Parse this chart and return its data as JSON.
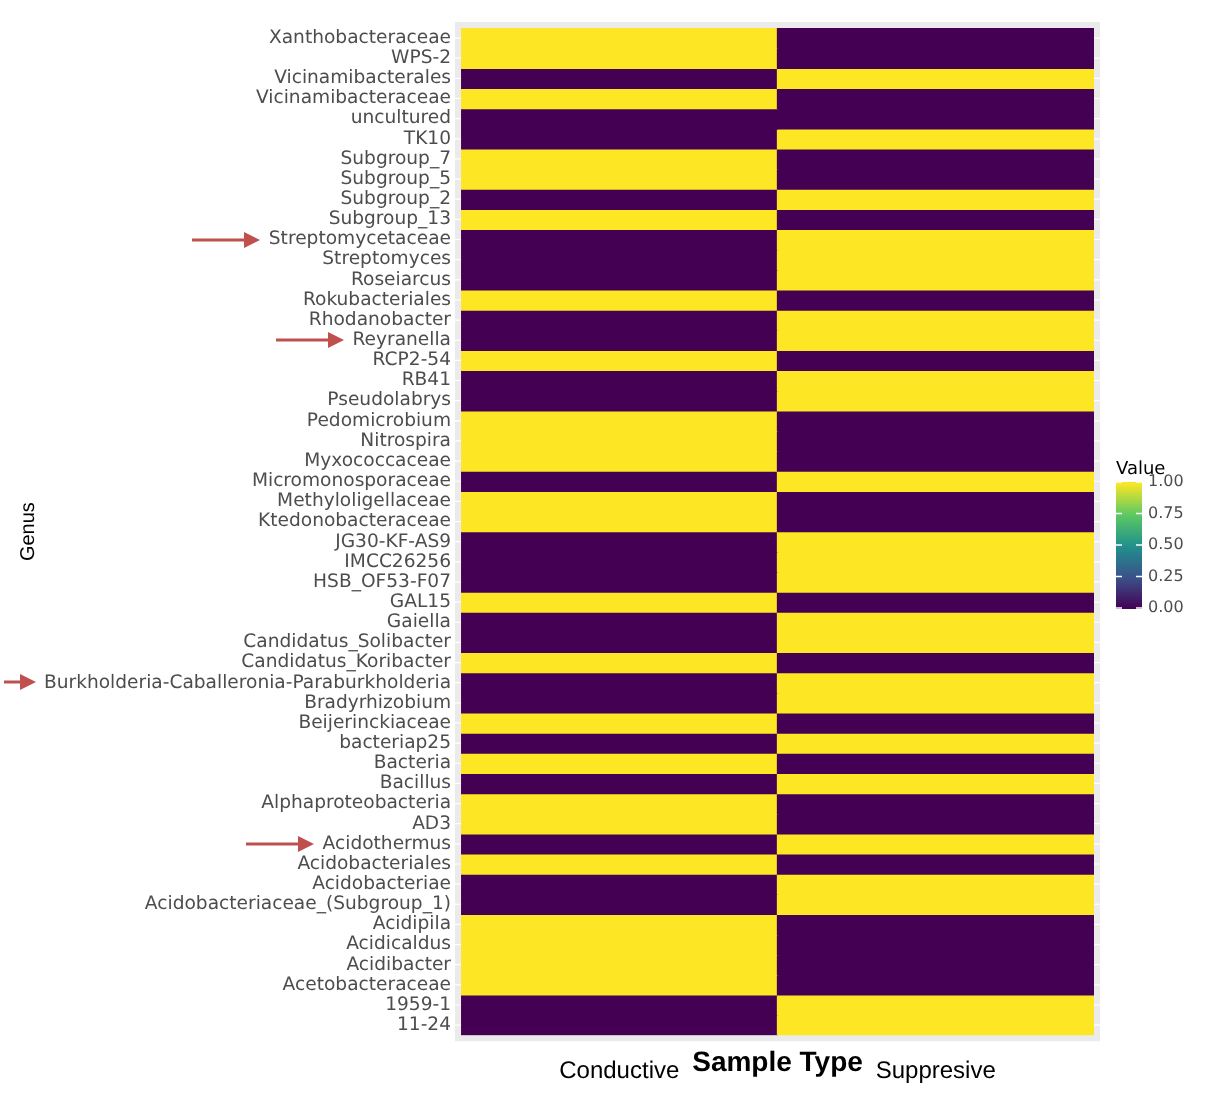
{
  "chart_data": {
    "type": "heatmap",
    "xlabel": "Sample Type",
    "ylabel": "Genus",
    "legend_title": "Value",
    "categories": [
      "Conductive",
      "Suppresive"
    ],
    "y_categories": [
      "Xanthobacteraceae",
      "WPS-2",
      "Vicinamibacterales",
      "Vicinamibacteraceae",
      "uncultured",
      "TK10",
      "Subgroup_7",
      "Subgroup_5",
      "Subgroup_2",
      "Subgroup_13",
      "Streptomycetaceae",
      "Streptomyces",
      "Roseiarcus",
      "Rokubacteriales",
      "Rhodanobacter",
      "Reyranella",
      "RCP2-54",
      "RB41",
      "Pseudolabrys",
      "Pedomicrobium",
      "Nitrospira",
      "Myxococcaceae",
      "Micromonosporaceae",
      "Methyloligellaceae",
      "Ktedonobacteraceae",
      "JG30-KF-AS9",
      "IMCC26256",
      "HSB_OF53-F07",
      "GAL15",
      "Gaiella",
      "Candidatus_Solibacter",
      "Candidatus_Koribacter",
      "Burkholderia-Caballeronia-Paraburkholderia",
      "Bradyrhizobium",
      "Beijerinckiaceae",
      "bacteriap25",
      "Bacteria",
      "Bacillus",
      "Alphaproteobacteria",
      "AD3",
      "Acidothermus",
      "Acidobacteriales",
      "Acidobacteriae",
      "Acidobacteriaceae_(Subgroup_1)",
      "Acidipila",
      "Acidicaldus",
      "Acidibacter",
      "Acetobacteraceae",
      "1959-1",
      "11-24"
    ],
    "cells": [
      [
        1,
        0
      ],
      [
        1,
        0
      ],
      [
        0,
        1
      ],
      [
        1,
        0
      ],
      [
        0,
        0
      ],
      [
        0,
        1
      ],
      [
        1,
        0
      ],
      [
        1,
        0
      ],
      [
        0,
        1
      ],
      [
        1,
        0
      ],
      [
        0,
        1
      ],
      [
        0,
        1
      ],
      [
        0,
        1
      ],
      [
        1,
        0
      ],
      [
        0,
        1
      ],
      [
        0,
        1
      ],
      [
        1,
        0
      ],
      [
        0,
        1
      ],
      [
        0,
        1
      ],
      [
        1,
        0
      ],
      [
        1,
        0
      ],
      [
        1,
        0
      ],
      [
        0,
        1
      ],
      [
        1,
        0
      ],
      [
        1,
        0
      ],
      [
        0,
        1
      ],
      [
        0,
        1
      ],
      [
        0,
        1
      ],
      [
        1,
        0
      ],
      [
        0,
        1
      ],
      [
        0,
        1
      ],
      [
        1,
        0
      ],
      [
        0,
        1
      ],
      [
        0,
        1
      ],
      [
        1,
        0
      ],
      [
        0,
        1
      ],
      [
        1,
        0
      ],
      [
        0,
        1
      ],
      [
        1,
        0
      ],
      [
        1,
        0
      ],
      [
        0,
        1
      ],
      [
        1,
        0
      ],
      [
        0,
        1
      ],
      [
        0,
        1
      ],
      [
        1,
        0
      ],
      [
        1,
        0
      ],
      [
        1,
        0
      ],
      [
        1,
        0
      ],
      [
        0,
        1
      ],
      [
        0,
        1
      ]
    ],
    "clim": [
      0,
      1
    ],
    "cticks": [
      {
        "value": 0,
        "label": "0.00"
      },
      {
        "value": 0.25,
        "label": "0.25"
      },
      {
        "value": 0.5,
        "label": "0.50"
      },
      {
        "value": 0.75,
        "label": "0.75"
      },
      {
        "value": 1,
        "label": "1.00"
      }
    ]
  }
}
